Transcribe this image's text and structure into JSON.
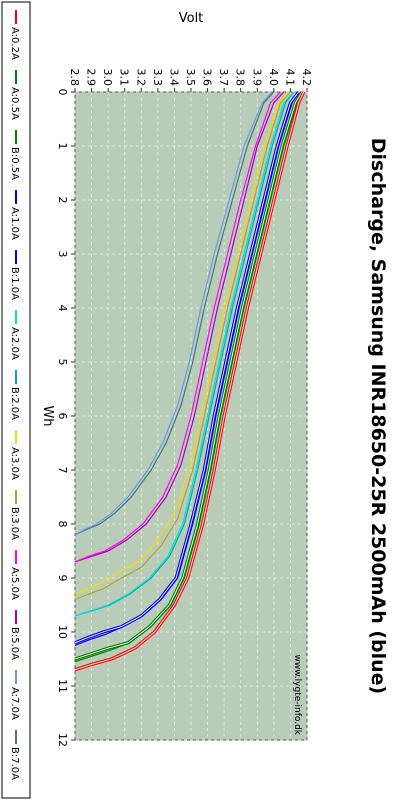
{
  "chart_data": {
    "type": "line",
    "title": "Discharge, Samsung INR18650-25R 2500mAh (blue)",
    "xlabel": "Wh",
    "ylabel": "Volt",
    "watermark": "www.lygte-info.dk",
    "xlim": [
      0,
      12
    ],
    "ylim": [
      2.8,
      4.2
    ],
    "xticks": [
      "0",
      "1",
      "2",
      "3",
      "4",
      "5",
      "6",
      "7",
      "8",
      "9",
      "10",
      "11",
      "12"
    ],
    "yticks": [
      "2.8",
      "2.9",
      "3.0",
      "3.1",
      "3.2",
      "3.3",
      "3.4",
      "3.5",
      "3.6",
      "3.7",
      "3.8",
      "3.9",
      "4.0",
      "4.1",
      "4.2"
    ],
    "grid": true,
    "legend_position": "left",
    "plot_background": "#b8ccb8",
    "series": [
      {
        "name": "A:0.2A",
        "color": "#ff0000",
        "double": true,
        "points": [
          [
            0,
            4.18
          ],
          [
            0.2,
            4.15
          ],
          [
            1,
            4.08
          ],
          [
            2,
            4.0
          ],
          [
            3,
            3.92
          ],
          [
            4,
            3.84
          ],
          [
            5,
            3.77
          ],
          [
            6,
            3.7
          ],
          [
            7,
            3.64
          ],
          [
            8,
            3.57
          ],
          [
            9,
            3.48
          ],
          [
            9.5,
            3.4
          ],
          [
            10,
            3.28
          ],
          [
            10.3,
            3.16
          ],
          [
            10.5,
            3.02
          ],
          [
            10.6,
            2.9
          ],
          [
            10.7,
            2.8
          ]
        ]
      },
      {
        "name": "A:0.5A",
        "color": "#008000",
        "double": true,
        "points": [
          [
            0,
            4.17
          ],
          [
            0.2,
            4.13
          ],
          [
            1,
            4.05
          ],
          [
            2,
            3.97
          ],
          [
            3,
            3.89
          ],
          [
            4,
            3.81
          ],
          [
            5,
            3.74
          ],
          [
            6,
            3.67
          ],
          [
            7,
            3.61
          ],
          [
            8,
            3.54
          ],
          [
            9,
            3.45
          ],
          [
            9.5,
            3.37
          ],
          [
            9.9,
            3.25
          ],
          [
            10.2,
            3.12
          ],
          [
            10.3,
            3.0
          ],
          [
            10.4,
            2.9
          ],
          [
            10.5,
            2.8
          ]
        ]
      },
      {
        "name": "A:1.0A",
        "color": "#0000ff",
        "double": true,
        "points": [
          [
            0,
            4.15
          ],
          [
            0.2,
            4.1
          ],
          [
            1,
            4.02
          ],
          [
            2,
            3.94
          ],
          [
            3,
            3.86
          ],
          [
            4,
            3.78
          ],
          [
            5,
            3.71
          ],
          [
            6,
            3.64
          ],
          [
            7,
            3.58
          ],
          [
            8,
            3.5
          ],
          [
            9,
            3.41
          ],
          [
            9.4,
            3.31
          ],
          [
            9.7,
            3.2
          ],
          [
            9.9,
            3.08
          ],
          [
            10.0,
            2.97
          ],
          [
            10.1,
            2.88
          ],
          [
            10.2,
            2.8
          ]
        ]
      },
      {
        "name": "A:2.0A",
        "color": "#00e0e0",
        "double": false,
        "points": [
          [
            0,
            4.12
          ],
          [
            0.2,
            4.06
          ],
          [
            1,
            3.98
          ],
          [
            2,
            3.9
          ],
          [
            3,
            3.82
          ],
          [
            4,
            3.74
          ],
          [
            5,
            3.67
          ],
          [
            6,
            3.6
          ],
          [
            7,
            3.53
          ],
          [
            8,
            3.45
          ],
          [
            8.6,
            3.36
          ],
          [
            9.0,
            3.25
          ],
          [
            9.3,
            3.12
          ],
          [
            9.5,
            3.0
          ],
          [
            9.6,
            2.9
          ],
          [
            9.7,
            2.8
          ]
        ]
      },
      {
        "name": "A:3.0A",
        "color": "#ffd700",
        "double": false,
        "points": [
          [
            0,
            4.09
          ],
          [
            0.2,
            4.03
          ],
          [
            1,
            3.94
          ],
          [
            2,
            3.86
          ],
          [
            3,
            3.78
          ],
          [
            4,
            3.7
          ],
          [
            5,
            3.63
          ],
          [
            6,
            3.56
          ],
          [
            7,
            3.49
          ],
          [
            7.8,
            3.4
          ],
          [
            8.3,
            3.3
          ],
          [
            8.7,
            3.18
          ],
          [
            8.9,
            3.06
          ],
          [
            9.1,
            2.95
          ],
          [
            9.2,
            2.87
          ],
          [
            9.3,
            2.8
          ]
        ]
      },
      {
        "name": "A:5.0A",
        "color": "#ff00ff",
        "double": false,
        "points": [
          [
            0,
            4.04
          ],
          [
            0.2,
            3.98
          ],
          [
            1,
            3.89
          ],
          [
            2,
            3.8
          ],
          [
            3,
            3.72
          ],
          [
            4,
            3.64
          ],
          [
            5,
            3.57
          ],
          [
            6,
            3.5
          ],
          [
            6.9,
            3.42
          ],
          [
            7.5,
            3.33
          ],
          [
            8.0,
            3.21
          ],
          [
            8.3,
            3.09
          ],
          [
            8.5,
            2.98
          ],
          [
            8.6,
            2.88
          ],
          [
            8.7,
            2.8
          ]
        ]
      },
      {
        "name": "A:7.0A",
        "color": "#6699ee",
        "double": false,
        "points": [
          [
            0,
            3.99
          ],
          [
            0.2,
            3.93
          ],
          [
            1,
            3.82
          ],
          [
            2,
            3.73
          ],
          [
            3,
            3.64
          ],
          [
            4,
            3.56
          ],
          [
            5,
            3.49
          ],
          [
            5.8,
            3.42
          ],
          [
            6.5,
            3.33
          ],
          [
            7.0,
            3.24
          ],
          [
            7.5,
            3.12
          ],
          [
            7.8,
            3.02
          ],
          [
            8.0,
            2.93
          ],
          [
            8.1,
            2.86
          ],
          [
            8.2,
            2.8
          ]
        ]
      },
      {
        "name": "B:0.5A",
        "color": "#008000",
        "double": false,
        "points": [
          [
            0,
            4.17
          ],
          [
            0.2,
            4.14
          ],
          [
            1,
            4.06
          ],
          [
            2,
            3.98
          ],
          [
            3,
            3.9
          ],
          [
            4,
            3.82
          ],
          [
            5,
            3.75
          ],
          [
            6,
            3.68
          ],
          [
            7,
            3.62
          ],
          [
            8,
            3.55
          ],
          [
            9,
            3.46
          ],
          [
            9.5,
            3.38
          ],
          [
            9.9,
            3.26
          ],
          [
            10.2,
            3.13
          ],
          [
            10.35,
            3.0
          ],
          [
            10.45,
            2.9
          ],
          [
            10.55,
            2.8
          ]
        ]
      },
      {
        "name": "B:1.0A",
        "color": "#0000ff",
        "double": false,
        "points": [
          [
            0,
            4.15
          ],
          [
            0.2,
            4.11
          ],
          [
            1,
            4.03
          ],
          [
            2,
            3.95
          ],
          [
            3,
            3.87
          ],
          [
            4,
            3.79
          ],
          [
            5,
            3.72
          ],
          [
            6,
            3.65
          ],
          [
            7,
            3.59
          ],
          [
            8,
            3.51
          ],
          [
            9,
            3.42
          ],
          [
            9.4,
            3.32
          ],
          [
            9.7,
            3.21
          ],
          [
            9.9,
            3.09
          ],
          [
            10.05,
            2.98
          ],
          [
            10.15,
            2.88
          ],
          [
            10.25,
            2.8
          ]
        ]
      },
      {
        "name": "B:2.0A",
        "color": "#00aaaa",
        "double": false,
        "points": [
          [
            0,
            4.12
          ],
          [
            0.2,
            4.07
          ],
          [
            1,
            3.99
          ],
          [
            2,
            3.91
          ],
          [
            3,
            3.83
          ],
          [
            4,
            3.75
          ],
          [
            5,
            3.68
          ],
          [
            6,
            3.61
          ],
          [
            7,
            3.54
          ],
          [
            8,
            3.46
          ],
          [
            8.6,
            3.37
          ],
          [
            9.0,
            3.26
          ],
          [
            9.3,
            3.13
          ],
          [
            9.5,
            3.01
          ],
          [
            9.6,
            2.91
          ],
          [
            9.7,
            2.8
          ]
        ]
      },
      {
        "name": "B:3.0A",
        "color": "#b8a030",
        "double": false,
        "points": [
          [
            0,
            4.1
          ],
          [
            0.2,
            4.04
          ],
          [
            1,
            3.96
          ],
          [
            2,
            3.88
          ],
          [
            3,
            3.8
          ],
          [
            4,
            3.72
          ],
          [
            5,
            3.65
          ],
          [
            6,
            3.58
          ],
          [
            7,
            3.51
          ],
          [
            7.9,
            3.42
          ],
          [
            8.4,
            3.32
          ],
          [
            8.8,
            3.2
          ],
          [
            9.0,
            3.08
          ],
          [
            9.2,
            2.97
          ],
          [
            9.3,
            2.88
          ],
          [
            9.4,
            2.8
          ]
        ]
      },
      {
        "name": "B:5.0A",
        "color": "#aa00aa",
        "double": false,
        "points": [
          [
            0,
            4.06
          ],
          [
            0.2,
            4.0
          ],
          [
            1,
            3.9
          ],
          [
            2,
            3.82
          ],
          [
            3,
            3.74
          ],
          [
            4,
            3.66
          ],
          [
            5,
            3.59
          ],
          [
            6,
            3.52
          ],
          [
            6.9,
            3.44
          ],
          [
            7.5,
            3.35
          ],
          [
            8.0,
            3.23
          ],
          [
            8.3,
            3.11
          ],
          [
            8.5,
            3.0
          ],
          [
            8.6,
            2.9
          ],
          [
            8.7,
            2.8
          ]
        ]
      },
      {
        "name": "B:7.0A",
        "color": "#447777",
        "double": false,
        "points": [
          [
            0,
            4.0
          ],
          [
            0.2,
            3.94
          ],
          [
            1,
            3.84
          ],
          [
            2,
            3.75
          ],
          [
            3,
            3.66
          ],
          [
            4,
            3.58
          ],
          [
            5,
            3.51
          ],
          [
            5.8,
            3.44
          ],
          [
            6.5,
            3.35
          ],
          [
            7.0,
            3.26
          ],
          [
            7.5,
            3.14
          ],
          [
            7.8,
            3.04
          ],
          [
            8.0,
            2.95
          ],
          [
            8.1,
            2.87
          ],
          [
            8.2,
            2.8
          ]
        ]
      }
    ],
    "legend_order": [
      "A:0.2A",
      "A:0.5A",
      "B:0.5A",
      "A:1.0A",
      "B:1.0A",
      "A:2.0A",
      "B:2.0A",
      "A:3.0A",
      "B:3.0A",
      "A:5.0A",
      "B:5.0A",
      "A:7.0A",
      "B:7.0A"
    ]
  }
}
